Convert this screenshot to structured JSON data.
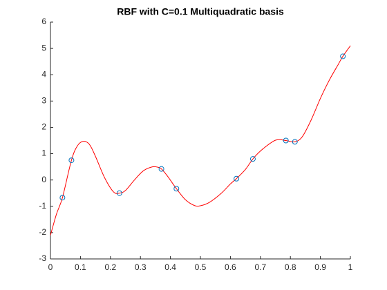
{
  "chart_data": {
    "type": "line",
    "title": "RBF with C=0.1 Multiquadratic basis",
    "xlim": [
      0,
      1
    ],
    "ylim": [
      -3,
      6
    ],
    "xticks": [
      0,
      0.1,
      0.2,
      0.3,
      0.4,
      0.5,
      0.6,
      0.7,
      0.8,
      0.9,
      1
    ],
    "yticks": [
      -3,
      -2,
      -1,
      0,
      1,
      2,
      3,
      4,
      5,
      6
    ],
    "grid": false,
    "series": [
      {
        "color": "#ff0000",
        "marker": "none",
        "line": true,
        "x": [
          0,
          0.02,
          0.04,
          0.07,
          0.09,
          0.11,
          0.13,
          0.15,
          0.18,
          0.21,
          0.23,
          0.25,
          0.28,
          0.31,
          0.34,
          0.36,
          0.37,
          0.39,
          0.42,
          0.45,
          0.48,
          0.5,
          0.53,
          0.57,
          0.6,
          0.62,
          0.65,
          0.675,
          0.7,
          0.74,
          0.76,
          0.785,
          0.815,
          0.84,
          0.87,
          0.9,
          0.93,
          0.96,
          0.975,
          1.0
        ],
        "values": [
          -2.1,
          -1.3,
          -0.67,
          0.75,
          1.3,
          1.47,
          1.35,
          0.9,
          0.1,
          -0.45,
          -0.5,
          -0.4,
          0.0,
          0.35,
          0.5,
          0.48,
          0.42,
          0.15,
          -0.33,
          -0.75,
          -0.97,
          -0.98,
          -0.85,
          -0.5,
          -0.15,
          0.05,
          0.4,
          0.8,
          1.1,
          1.45,
          1.53,
          1.5,
          1.45,
          1.65,
          2.3,
          3.1,
          3.8,
          4.4,
          4.7,
          5.1
        ]
      },
      {
        "color": "#0072bd",
        "marker": "circle",
        "line": false,
        "x": [
          0.04,
          0.07,
          0.23,
          0.37,
          0.42,
          0.62,
          0.675,
          0.785,
          0.815,
          0.975
        ],
        "values": [
          -0.67,
          0.75,
          -0.5,
          0.42,
          -0.33,
          0.05,
          0.8,
          1.5,
          1.45,
          4.7
        ]
      }
    ]
  }
}
